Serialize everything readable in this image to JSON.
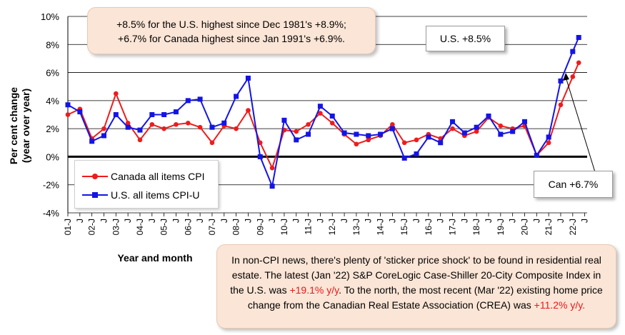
{
  "chart_data": {
    "type": "line",
    "ylabel": "Per cent change\n(year over year)",
    "xlabel": "Year and month",
    "ylim": [
      -4,
      10
    ],
    "yticks": [
      -4,
      -2,
      0,
      2,
      4,
      6,
      8,
      10
    ],
    "ytick_labels": [
      "-4%",
      "-2%",
      "0%",
      "2%",
      "4%",
      "6%",
      "8%",
      "10%"
    ],
    "grid": "horizontal",
    "legend_position": "bottom-left",
    "xlim_years": [
      2001,
      2022.6
    ],
    "x_year_labels": [
      "01-J",
      "02-J",
      "03-J",
      "04-J",
      "05-J",
      "06-J",
      "07-J",
      "08-J",
      "09-J",
      "10-J",
      "11-J",
      "12-J",
      "13-J",
      "14-J",
      "15-J",
      "16-J",
      "17-J",
      "18-J",
      "19-J",
      "20-J",
      "21-J",
      "22-J"
    ],
    "series": [
      {
        "name": "Canada all items CPI",
        "color": "#ee1c1c",
        "marker": "circle",
        "x": [
          2001.0,
          2001.5,
          2002.0,
          2002.5,
          2003.0,
          2003.5,
          2004.0,
          2004.5,
          2005.0,
          2005.5,
          2006.0,
          2006.5,
          2007.0,
          2007.5,
          2008.0,
          2008.5,
          2009.0,
          2009.5,
          2010.0,
          2010.5,
          2011.0,
          2011.5,
          2012.0,
          2012.5,
          2013.0,
          2013.5,
          2014.0,
          2014.5,
          2015.0,
          2015.5,
          2016.0,
          2016.5,
          2017.0,
          2017.5,
          2018.0,
          2018.5,
          2019.0,
          2019.5,
          2020.0,
          2020.5,
          2021.0,
          2021.5,
          2022.0,
          2022.25
        ],
        "values": [
          3.0,
          3.4,
          1.3,
          2.0,
          4.5,
          2.4,
          1.2,
          2.3,
          2.0,
          2.3,
          2.4,
          2.1,
          1.0,
          2.2,
          2.0,
          3.3,
          1.0,
          -0.8,
          1.9,
          1.8,
          2.3,
          3.1,
          2.4,
          1.6,
          0.9,
          1.2,
          1.5,
          2.3,
          1.0,
          1.2,
          1.6,
          1.3,
          2.0,
          1.5,
          1.8,
          2.8,
          2.2,
          2.0,
          2.2,
          0.1,
          1.0,
          3.7,
          5.7,
          6.7
        ]
      },
      {
        "name": "U.S. all items CPI-U",
        "color": "#1414e6",
        "marker": "square",
        "x": [
          2001.0,
          2001.5,
          2002.0,
          2002.5,
          2003.0,
          2003.5,
          2004.0,
          2004.5,
          2005.0,
          2005.5,
          2006.0,
          2006.5,
          2007.0,
          2007.5,
          2008.0,
          2008.5,
          2009.0,
          2009.5,
          2010.0,
          2010.5,
          2011.0,
          2011.5,
          2012.0,
          2012.5,
          2013.0,
          2013.5,
          2014.0,
          2014.5,
          2015.0,
          2015.5,
          2016.0,
          2016.5,
          2017.0,
          2017.5,
          2018.0,
          2018.5,
          2019.0,
          2019.5,
          2020.0,
          2020.5,
          2021.0,
          2021.5,
          2022.0,
          2022.25
        ],
        "values": [
          3.7,
          3.2,
          1.1,
          1.5,
          3.0,
          2.1,
          1.9,
          3.0,
          3.0,
          3.2,
          4.0,
          4.1,
          2.1,
          2.4,
          4.3,
          5.6,
          0.0,
          -2.1,
          2.6,
          1.2,
          1.6,
          3.6,
          2.9,
          1.7,
          1.6,
          1.5,
          1.6,
          2.0,
          -0.1,
          0.2,
          1.4,
          1.0,
          2.5,
          1.7,
          2.1,
          2.9,
          1.6,
          1.8,
          2.5,
          0.1,
          1.4,
          5.4,
          7.5,
          8.5
        ]
      }
    ]
  },
  "legend": {
    "canada": "Canada all items CPI",
    "us": "U.S. all items CPI-U"
  },
  "annotations": {
    "top_box_line1": "+8.5% for the U.S. highest since Dec 1981's +8.9%;",
    "top_box_line2": "+6.7% for Canada highest since Jan 1991's +6.9%.",
    "us_tag": "U.S. +8.5%",
    "can_tag": "Can +6.7%",
    "bottom_box_part1": "In non-CPI news, there's plenty of 'sticker price shock' to be found in residential real estate. The latest (Jan '22) S&P CoreLogic Case-Shiller 20-City Composite Index in the U.S. was ",
    "bottom_box_hl1": "+19.1% y/y",
    "bottom_box_part2": ". To the north, the most recent (Mar '22) existing home price change from the Canadian Real Estate Association (CREA) was ",
    "bottom_box_hl2": "+11.2% y/y.",
    "hl_color": "#e8191b"
  }
}
